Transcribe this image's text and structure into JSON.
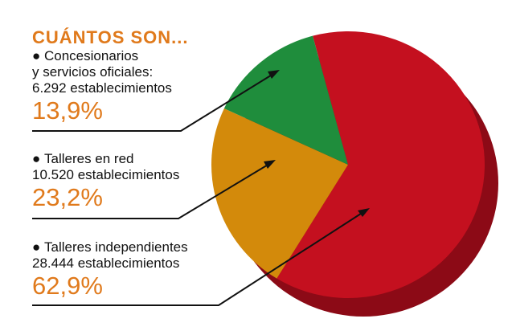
{
  "chart_data": {
    "type": "pie",
    "title": "CUÁNTOS SON...",
    "categories": [
      "Concesionarios\ny servicios oficiales:",
      "Talleres en red",
      "Talleres independientes"
    ],
    "details": [
      "6.292 establecimientos",
      "10.520 establecimientos",
      "28.444 establecimientos"
    ],
    "values": [
      13.9,
      23.2,
      62.9
    ],
    "value_labels": [
      "13,9%",
      "23,2%",
      "62,9%"
    ],
    "colors": [
      "#1f8d3c",
      "#d38a0b",
      "#c4101f"
    ]
  }
}
